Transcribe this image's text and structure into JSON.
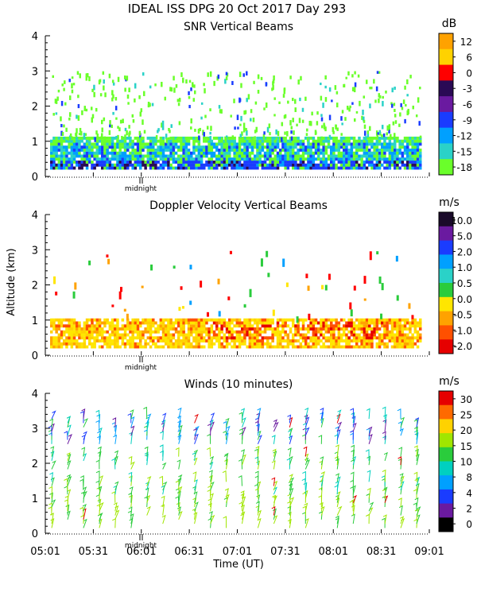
{
  "title": "IDEAL ISS DPG  20 Oct 2017 Day 293",
  "x_label": "Time (UT)",
  "y_label": "Altitude (km)",
  "midnight_label": "midnight",
  "chart_data": [
    {
      "type": "heatmap",
      "title": "SNR Vertical Beams",
      "unit": "dB",
      "ylim": [
        0,
        4
      ],
      "yticks": [
        "0",
        "1",
        "2",
        "3",
        "4"
      ],
      "colorbar": {
        "labels": [
          "12",
          "6",
          "0",
          "-3",
          "-6",
          "-9",
          "-12",
          "-15",
          "-18"
        ],
        "colors": [
          "#ffa200",
          "#ffd200",
          "#ff0000",
          "#2a0a55",
          "#6a1aa0",
          "#1a3cff",
          "#00a0ff",
          "#2ad2c8",
          "#6aff2a"
        ]
      },
      "description": "dense returns 0.2-1.0 km (strongest 0.3-0.9 km), scattered echoes 1.1-3.0 km"
    },
    {
      "type": "heatmap",
      "title": "Doppler Velocity Vertical Beams",
      "unit": "m/s",
      "ylim": [
        0,
        4
      ],
      "yticks": [
        "0",
        "1",
        "2",
        "3",
        "4"
      ],
      "colorbar": {
        "labels": [
          "10.0",
          "5.0",
          "2.0",
          "1.0",
          "0.5",
          "0.0",
          "-0.5",
          "-1.0",
          "-2.0"
        ],
        "colors": [
          "#1a0a2a",
          "#6a1aa0",
          "#1a3cff",
          "#00a0ff",
          "#2ad2c8",
          "#2acc3c",
          "#ffe600",
          "#ffa200",
          "#ff5000",
          "#e60000"
        ]
      },
      "description": "mostly -0.5 to 0.0 m/s below 1 km, sparse echoes aloft"
    },
    {
      "type": "scatter",
      "title": "Winds (10 minutes)",
      "unit": "m/s",
      "ylim": [
        0,
        4
      ],
      "yticks": [
        "0",
        "1",
        "2",
        "3",
        "4"
      ],
      "x_tick_labels": [
        "05:01",
        "05:31",
        "06:01",
        "06:31",
        "07:01",
        "07:31",
        "08:01",
        "08:31",
        "09:01"
      ],
      "colorbar": {
        "labels": [
          "30",
          "25",
          "20",
          "15",
          "10",
          "8",
          "4",
          "2",
          "0"
        ],
        "colors": [
          "#e60000",
          "#ff6a00",
          "#ffd200",
          "#a0e600",
          "#2acc3c",
          "#00d0c0",
          "#00a0ff",
          "#1a3cff",
          "#6a1aa0",
          "#000000"
        ]
      },
      "description": "wind barbs every 10 minutes, ~10-15 m/s near surface, 15-20 m/s mid levels, variable 8-25 m/s near 3 km"
    }
  ]
}
